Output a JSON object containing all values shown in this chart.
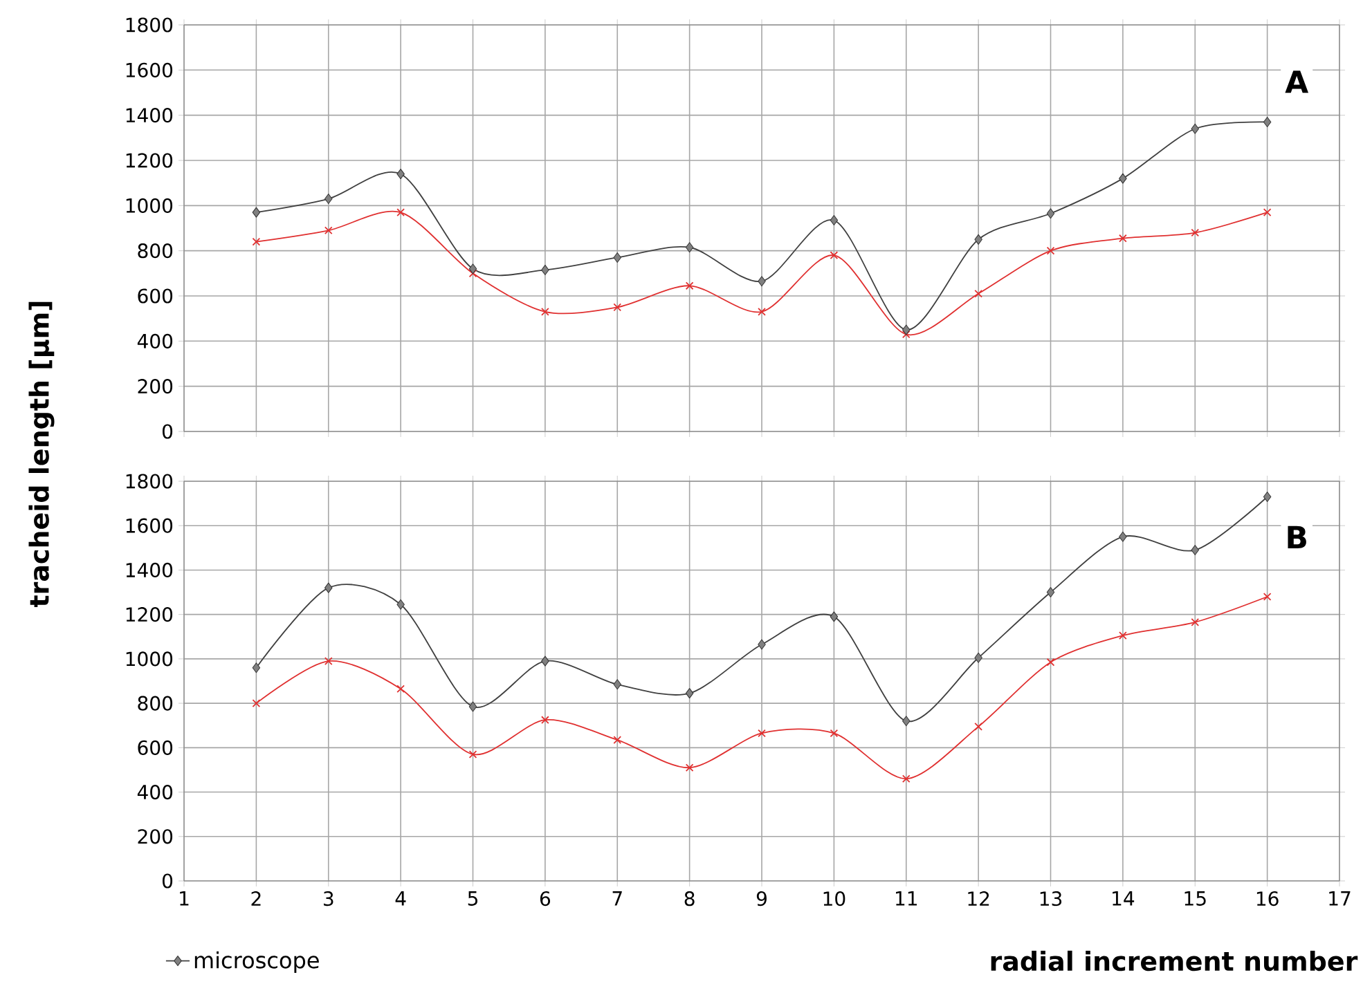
{
  "chart_data": [
    {
      "type": "line",
      "ylabel": "tracheid length [µm]",
      "annotations": [
        "A"
      ],
      "x": [
        2,
        3,
        4,
        5,
        6,
        7,
        8,
        9,
        10,
        11,
        12,
        13,
        14,
        15,
        16
      ],
      "xlim": [
        1,
        17
      ],
      "xticks": [
        1,
        2,
        3,
        4,
        5,
        6,
        7,
        8,
        9,
        10,
        11,
        12,
        13,
        14,
        15,
        16,
        17
      ],
      "ylim": [
        0,
        1800
      ],
      "yticks": [
        0,
        200,
        400,
        600,
        800,
        1000,
        1200,
        1400,
        1600,
        1800
      ],
      "grid": true,
      "tick_labels": "y",
      "legend": false,
      "series": [
        {
          "color": "#e03030",
          "marker": "cross",
          "values": [
            840,
            890,
            970,
            700,
            530,
            550,
            645,
            530,
            780,
            430,
            610,
            800,
            855,
            880,
            970
          ]
        },
        {
          "color": "#404040",
          "marker": "diamond",
          "values": [
            970,
            1030,
            1140,
            720,
            715,
            770,
            815,
            665,
            935,
            450,
            850,
            965,
            1120,
            1340,
            1370
          ]
        }
      ]
    },
    {
      "type": "line",
      "xlabel": "radial increment number",
      "annotations": [
        "B"
      ],
      "x": [
        2,
        3,
        4,
        5,
        6,
        7,
        8,
        9,
        10,
        11,
        12,
        13,
        14,
        15,
        16
      ],
      "xlim": [
        1,
        17
      ],
      "xticks": [
        1,
        2,
        3,
        4,
        5,
        6,
        7,
        8,
        9,
        10,
        11,
        12,
        13,
        14,
        15,
        16,
        17
      ],
      "ylim": [
        0,
        1800
      ],
      "yticks": [
        0,
        200,
        400,
        600,
        800,
        1000,
        1200,
        1400,
        1600,
        1800
      ],
      "grid": true,
      "legend": "bottom left",
      "series": [
        {
          "color": "#e03030",
          "marker": "cross",
          "values": [
            800,
            990,
            865,
            570,
            725,
            635,
            510,
            665,
            665,
            460,
            695,
            985,
            1105,
            1165,
            1280
          ]
        },
        {
          "name": "microscope",
          "color": "#404040",
          "marker": "diamond",
          "values": [
            960,
            1320,
            1245,
            785,
            990,
            885,
            845,
            1065,
            1190,
            720,
            1005,
            1300,
            1550,
            1490,
            1730
          ]
        }
      ]
    }
  ]
}
